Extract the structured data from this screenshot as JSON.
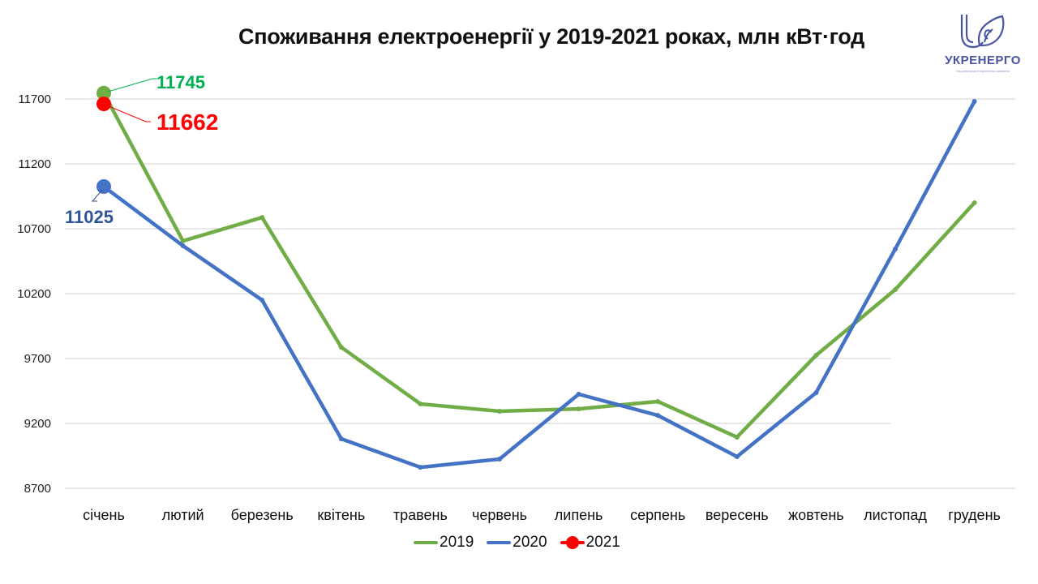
{
  "header": {
    "title": "Споживання електроенергії у 2019-2021 роках, млн кВт·год"
  },
  "logo": {
    "name": "УКРЕНЕРГО",
    "subtitle": "Національна енергетична компанія",
    "color": "#4a55a2"
  },
  "legend": {
    "items": [
      {
        "label": "2019",
        "color": "#70ad47"
      },
      {
        "label": "2020",
        "color": "#4472c4"
      },
      {
        "label": "2021",
        "color": "#ff0000"
      }
    ]
  },
  "annotations": {
    "v2019_jan": "11745",
    "v2021_jan": "11662",
    "v2020_jan": "11025"
  },
  "chart_data": {
    "type": "line",
    "title": "Споживання електроенергії у 2019-2021 роках, млн кВт·год",
    "xlabel": "",
    "ylabel": "",
    "categories": [
      "січень",
      "лютий",
      "березень",
      "квітень",
      "травень",
      "червень",
      "липень",
      "серпень",
      "вересень",
      "жовтень",
      "листопад",
      "грудень"
    ],
    "yticks": [
      8700,
      9200,
      9700,
      10200,
      10700,
      11200,
      11700
    ],
    "ylim": [
      8700,
      11700
    ],
    "grid": true,
    "legend_position": "bottom",
    "series": [
      {
        "name": "2019",
        "color": "#70ad47",
        "values": [
          11745,
          10606,
          10787,
          9787,
          9350,
          9294,
          9312,
          9369,
          9094,
          9725,
          10231,
          10900
        ]
      },
      {
        "name": "2020",
        "color": "#4472c4",
        "values": [
          11025,
          10569,
          10150,
          9081,
          8862,
          8925,
          9425,
          9262,
          8944,
          9437,
          10544,
          11681
        ]
      },
      {
        "name": "2021",
        "color": "#ff0000",
        "values": [
          11662
        ]
      }
    ],
    "data_labels": [
      {
        "series": "2019",
        "category": "січень",
        "text": "11745",
        "color": "#00b050"
      },
      {
        "series": "2021",
        "category": "січень",
        "text": "11662",
        "color": "#ff0000"
      },
      {
        "series": "2020",
        "category": "січень",
        "text": "11025",
        "color": "#2f5597"
      }
    ]
  }
}
